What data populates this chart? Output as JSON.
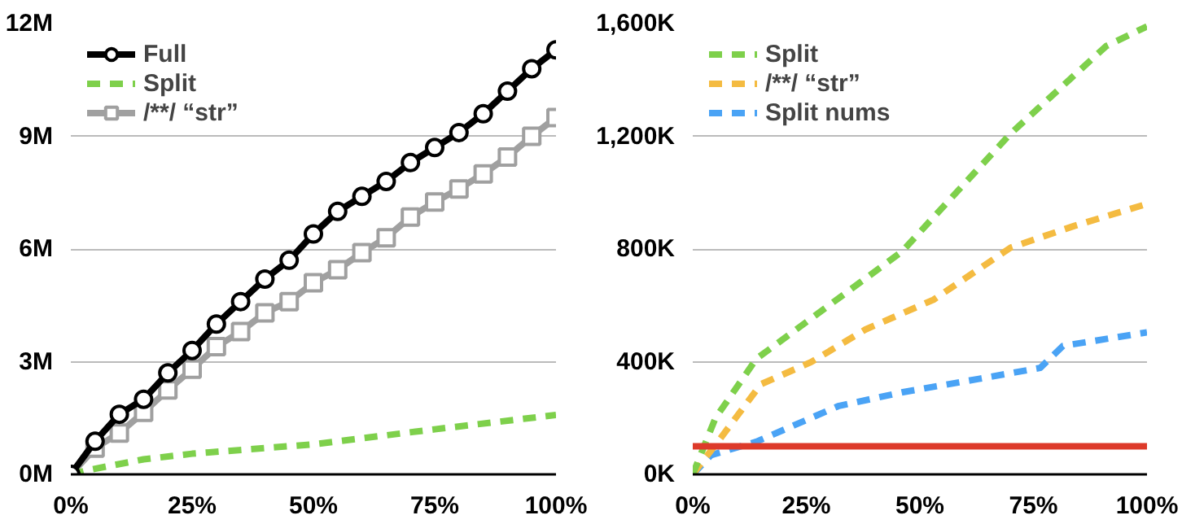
{
  "chart_data": [
    {
      "type": "line",
      "xlim": [
        0,
        100
      ],
      "ylim": [
        0,
        12
      ],
      "xticks": [
        {
          "value": 0,
          "label": "0%"
        },
        {
          "value": 25,
          "label": "25%"
        },
        {
          "value": 50,
          "label": "50%"
        },
        {
          "value": 75,
          "label": "75%"
        },
        {
          "value": 100,
          "label": "100%"
        }
      ],
      "yticks": [
        {
          "value": 0,
          "label": "0M"
        },
        {
          "value": 3,
          "label": "3M"
        },
        {
          "value": 6,
          "label": "6M"
        },
        {
          "value": 9,
          "label": "9M"
        },
        {
          "value": 12,
          "label": "12M"
        }
      ],
      "grid": "y",
      "legend": "top left",
      "series": [
        {
          "name": "Full",
          "color": "#000000",
          "marker": "circle",
          "line_style": "solid",
          "x": [
            0,
            5,
            10,
            15,
            20,
            25,
            30,
            35,
            40,
            45,
            50,
            55,
            60,
            65,
            70,
            75,
            80,
            85,
            90,
            95,
            100
          ],
          "values": [
            0,
            0.88,
            1.6,
            2.0,
            2.7,
            3.3,
            4.0,
            4.6,
            5.2,
            5.7,
            6.4,
            7.0,
            7.4,
            7.8,
            8.3,
            8.7,
            9.1,
            9.6,
            10.2,
            10.8,
            11.3
          ]
        },
        {
          "name": "Split",
          "color": "#7ed04b",
          "marker": "none",
          "line_style": "dashed",
          "x": [
            0,
            3,
            15,
            25,
            50,
            75,
            100
          ],
          "values": [
            0,
            0.1,
            0.4,
            0.55,
            0.8,
            1.2,
            1.58
          ]
        },
        {
          "name": "/**/ “str”",
          "color": "#a0a0a0",
          "marker": "square",
          "line_style": "solid",
          "x": [
            0,
            5,
            10,
            15,
            20,
            25,
            30,
            35,
            40,
            45,
            50,
            55,
            60,
            65,
            70,
            75,
            80,
            85,
            90,
            95,
            100
          ],
          "values": [
            0,
            0.7,
            1.1,
            1.65,
            2.25,
            2.8,
            3.4,
            3.8,
            4.3,
            4.6,
            5.1,
            5.45,
            5.9,
            6.3,
            6.85,
            7.25,
            7.6,
            8.0,
            8.45,
            9.0,
            9.5
          ]
        }
      ]
    },
    {
      "type": "line",
      "xlim": [
        0,
        100
      ],
      "ylim": [
        0,
        1600
      ],
      "xticks": [
        {
          "value": 0,
          "label": "0%"
        },
        {
          "value": 25,
          "label": "25%"
        },
        {
          "value": 50,
          "label": "50%"
        },
        {
          "value": 75,
          "label": "75%"
        },
        {
          "value": 100,
          "label": "100%"
        }
      ],
      "yticks": [
        {
          "value": 0,
          "label": "0K"
        },
        {
          "value": 400,
          "label": "400K"
        },
        {
          "value": 800,
          "label": "800K"
        },
        {
          "value": 1200,
          "label": "1,200K"
        },
        {
          "value": 1600,
          "label": "1,600K"
        }
      ],
      "grid": "y",
      "legend": "top left",
      "ref_lines": [
        {
          "axis": "y",
          "value": 100,
          "label": null,
          "color": "#dd3a2a",
          "line_style": "solid"
        }
      ],
      "series": [
        {
          "name": "Split",
          "color": "#7ed04b",
          "marker": "none",
          "line_style": "dashed",
          "x": [
            0,
            5,
            14,
            46,
            70,
            91,
            100
          ],
          "values": [
            0,
            200,
            410,
            790,
            1210,
            1520,
            1590
          ]
        },
        {
          "name": "/**/ “str”",
          "color": "#f4bb41",
          "marker": "none",
          "line_style": "dashed",
          "x": [
            0,
            6,
            15,
            26,
            38,
            53,
            70,
            84,
            100
          ],
          "values": [
            0,
            126,
            320,
            398,
            514,
            620,
            805,
            882,
            960
          ]
        },
        {
          "name": "Split nums",
          "color": "#4aa3f5",
          "marker": "none",
          "line_style": "dashed",
          "x": [
            0,
            4,
            14,
            32,
            46,
            63,
            76.5,
            81.5,
            100
          ],
          "values": [
            0,
            68,
            116,
            242,
            291,
            339,
            378,
            456,
            504
          ]
        }
      ]
    }
  ]
}
